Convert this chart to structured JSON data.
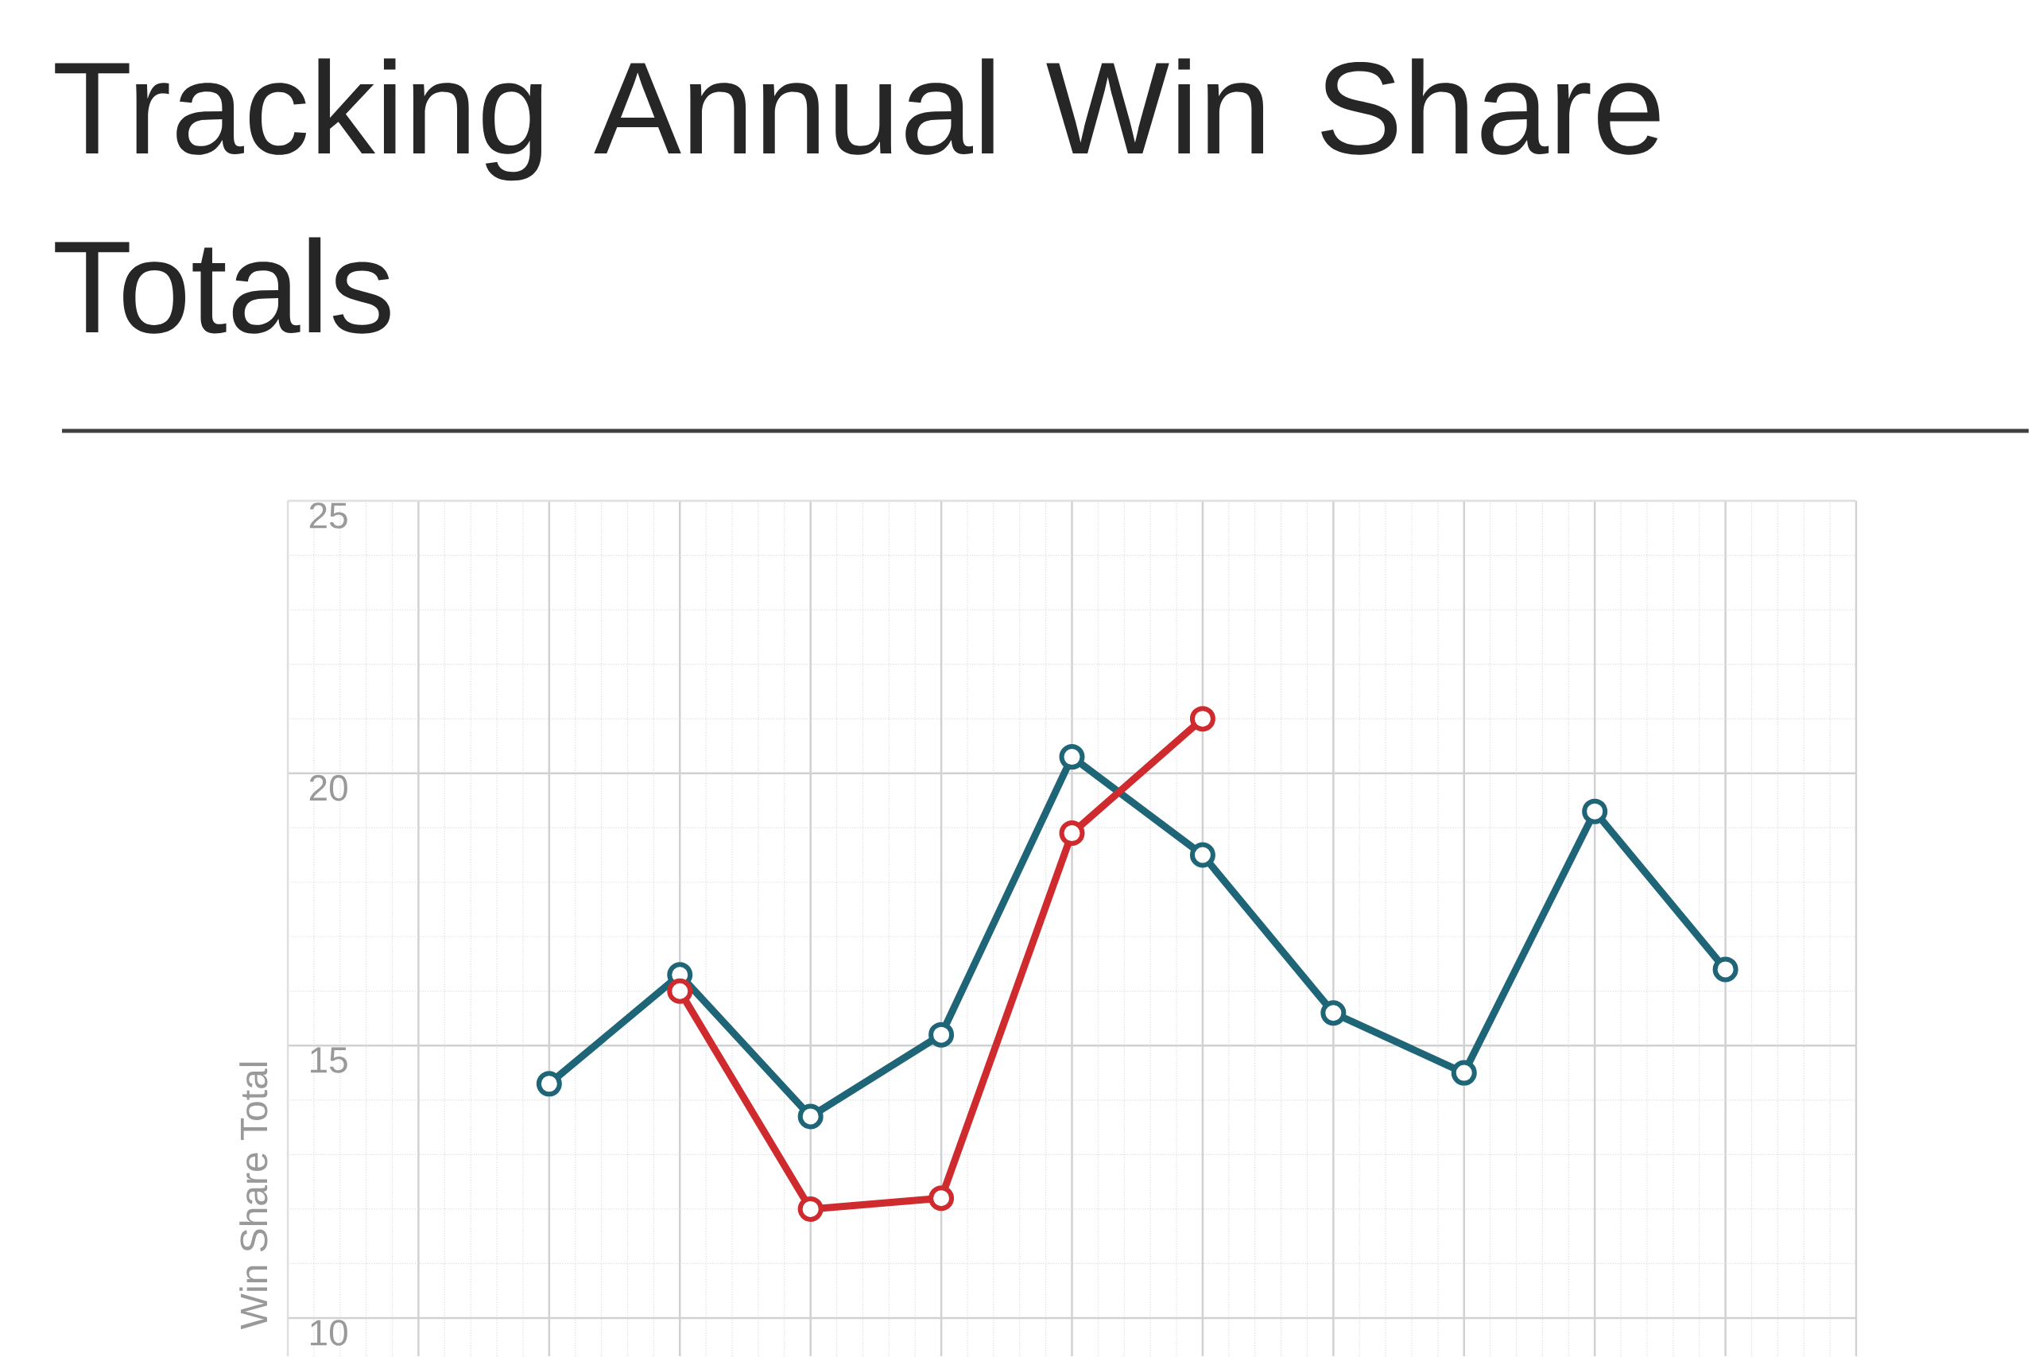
{
  "chart_data": {
    "type": "line",
    "title": "Tracking Annual Win Share Totals",
    "ylabel": "Win Share Total",
    "categories": [
      null,
      null,
      null,
      null,
      null,
      null,
      null,
      null,
      null,
      null,
      null,
      null,
      null
    ],
    "series": [
      {
        "color": "#1e6577",
        "values": [
          null,
          null,
          14.3,
          16.3,
          13.7,
          15.2,
          20.3,
          18.5,
          15.6,
          14.5,
          19.3,
          16.4,
          null
        ]
      },
      {
        "color": "#cf2a2e",
        "values": [
          null,
          null,
          null,
          16.0,
          12.0,
          12.2,
          18.9,
          21.0,
          null,
          null,
          null,
          null,
          null
        ]
      }
    ],
    "ylim": [
      9.3,
      25
    ],
    "yticks": [
      10,
      15,
      20,
      25
    ],
    "grid": true,
    "marker": "circle",
    "line_style": "solid"
  }
}
